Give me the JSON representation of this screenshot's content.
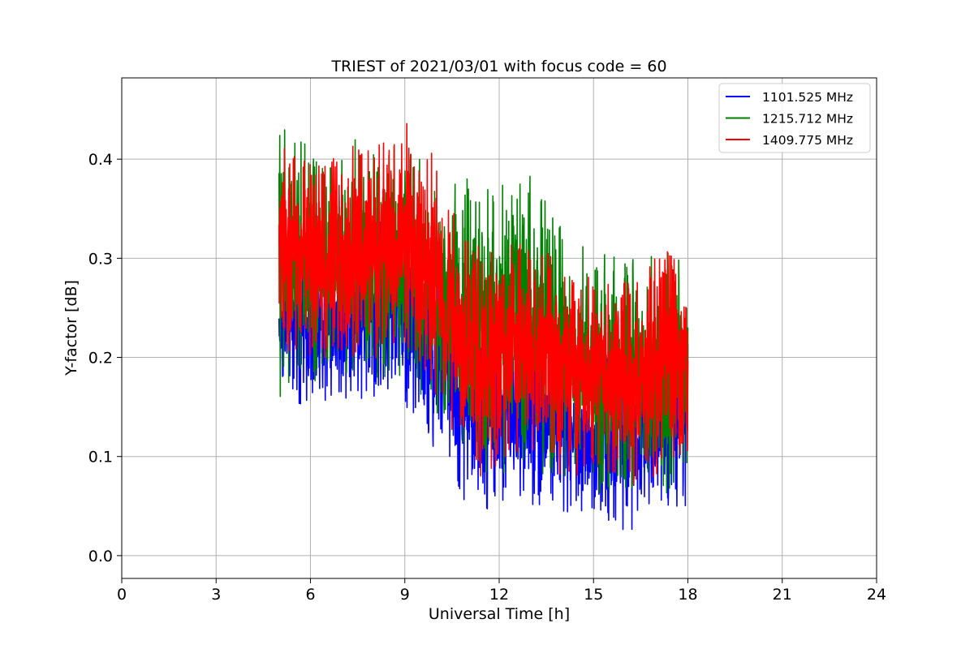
{
  "chart_data": {
    "type": "line",
    "title": "TRIEST of 2021/03/01 with focus code = 60",
    "xlabel": "Universal Time [h]",
    "ylabel": "Y-factor [dB]",
    "xlim": [
      0,
      24
    ],
    "ylim": [
      -0.023,
      0.482
    ],
    "xticks": [
      0,
      3,
      6,
      9,
      12,
      15,
      18,
      21,
      24
    ],
    "yticks": [
      0.0,
      0.1,
      0.2,
      0.3,
      0.4
    ],
    "ytick_labels": [
      "0.0",
      "0.1",
      "0.2",
      "0.3",
      "0.4"
    ],
    "grid": true,
    "legend_position": "top-right",
    "x_range_of_data": [
      5.0,
      18.0
    ],
    "series": [
      {
        "name": "1101.525 MHz",
        "color": "#0000ff",
        "envelope": {
          "x": [
            5.0,
            6.0,
            7.0,
            8.0,
            9.0,
            10.0,
            11.0,
            12.0,
            13.0,
            14.0,
            15.0,
            16.0,
            17.0,
            18.0
          ],
          "low": [
            0.16,
            0.15,
            0.15,
            0.16,
            0.15,
            0.1,
            0.04,
            0.05,
            0.05,
            0.04,
            0.04,
            0.02,
            0.05,
            0.05
          ],
          "high": [
            0.3,
            0.32,
            0.33,
            0.34,
            0.34,
            0.3,
            0.25,
            0.23,
            0.23,
            0.22,
            0.21,
            0.2,
            0.22,
            0.24
          ]
        }
      },
      {
        "name": "1215.712 MHz",
        "color": "#008000",
        "envelope": {
          "x": [
            5.0,
            6.0,
            7.0,
            8.0,
            9.0,
            10.0,
            11.0,
            12.0,
            13.0,
            14.0,
            15.0,
            16.0,
            17.0,
            18.0
          ],
          "low": [
            0.16,
            0.17,
            0.18,
            0.18,
            0.18,
            0.14,
            0.08,
            0.08,
            0.08,
            0.07,
            0.06,
            0.06,
            0.06,
            0.07
          ],
          "high": [
            0.45,
            0.41,
            0.42,
            0.42,
            0.42,
            0.38,
            0.38,
            0.39,
            0.39,
            0.33,
            0.31,
            0.3,
            0.31,
            0.3
          ]
        }
      },
      {
        "name": "1409.775 MHz",
        "color": "#ff0000",
        "envelope": {
          "x": [
            5.0,
            6.0,
            7.0,
            8.0,
            9.0,
            10.0,
            11.0,
            12.0,
            13.0,
            14.0,
            15.0,
            16.0,
            17.0,
            18.0
          ],
          "low": [
            0.2,
            0.2,
            0.2,
            0.2,
            0.2,
            0.16,
            0.07,
            0.09,
            0.09,
            0.08,
            0.08,
            0.06,
            0.08,
            0.1
          ],
          "high": [
            0.42,
            0.4,
            0.41,
            0.42,
            0.44,
            0.4,
            0.33,
            0.32,
            0.31,
            0.3,
            0.28,
            0.28,
            0.31,
            0.3
          ]
        }
      }
    ]
  }
}
